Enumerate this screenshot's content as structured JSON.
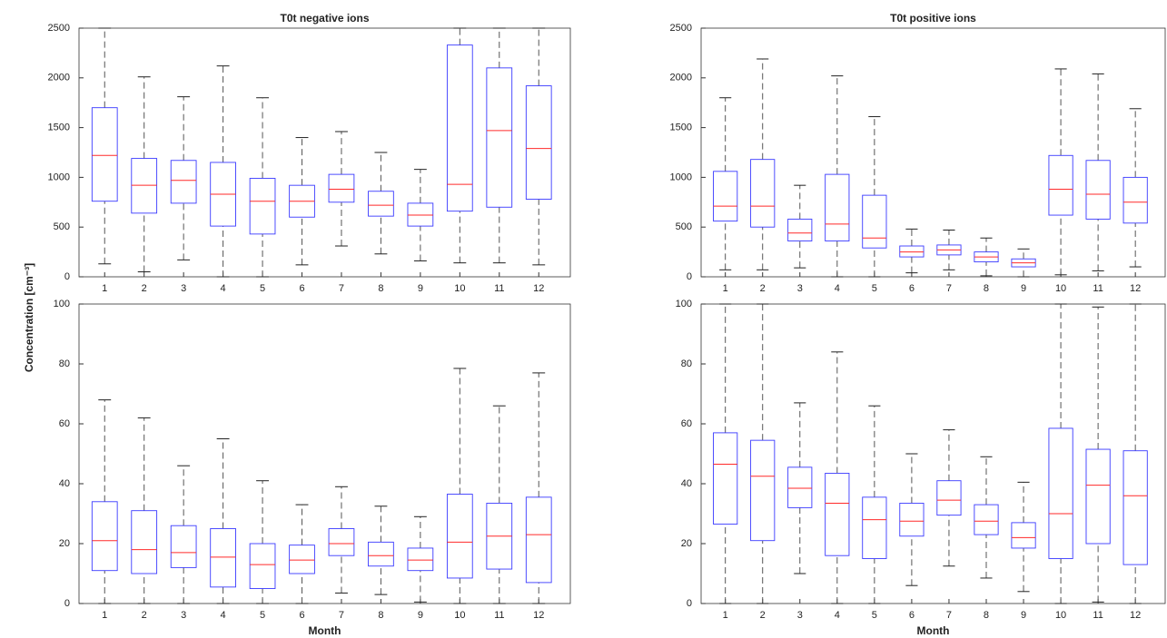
{
  "ylabel": "Concentration [cm⁻³]",
  "chart_data": [
    {
      "type": "box",
      "title": "T0t negative ions",
      "categories": [
        "1",
        "2",
        "3",
        "4",
        "5",
        "6",
        "7",
        "8",
        "9",
        "10",
        "11",
        "12"
      ],
      "whisker_low": [
        130,
        50,
        170,
        0,
        0,
        120,
        310,
        230,
        160,
        140,
        140,
        120
      ],
      "q1": [
        760,
        640,
        740,
        510,
        430,
        600,
        750,
        610,
        510,
        660,
        700,
        780
      ],
      "median": [
        1220,
        920,
        970,
        830,
        760,
        760,
        880,
        720,
        620,
        930,
        1470,
        1290
      ],
      "q3": [
        1700,
        1190,
        1170,
        1150,
        990,
        920,
        1030,
        860,
        740,
        2330,
        2100,
        1920
      ],
      "whisker_high": [
        2500,
        2010,
        1810,
        2120,
        1800,
        1400,
        1460,
        1250,
        1080,
        2500,
        2500,
        2500
      ],
      "ylim": [
        0,
        2500
      ],
      "yticks": [
        0,
        500,
        1000,
        1500,
        2000,
        2500
      ],
      "box_color": "#3a3aff",
      "median_color": "#ff2a2a",
      "whisker_color": "#555555"
    },
    {
      "type": "box",
      "title": "T0t positive ions",
      "categories": [
        "1",
        "2",
        "3",
        "4",
        "5",
        "6",
        "7",
        "8",
        "9",
        "10",
        "11",
        "12"
      ],
      "whisker_low": [
        70,
        70,
        90,
        0,
        0,
        40,
        70,
        10,
        0,
        20,
        60,
        100
      ],
      "q1": [
        560,
        500,
        360,
        360,
        290,
        200,
        220,
        150,
        100,
        620,
        580,
        540
      ],
      "median": [
        710,
        710,
        440,
        530,
        390,
        250,
        270,
        200,
        140,
        880,
        830,
        750
      ],
      "q3": [
        1060,
        1180,
        580,
        1030,
        820,
        310,
        320,
        250,
        180,
        1220,
        1170,
        1000
      ],
      "whisker_high": [
        1800,
        2190,
        920,
        2020,
        1610,
        480,
        470,
        390,
        280,
        2090,
        2040,
        1690
      ],
      "ylim": [
        0,
        2500
      ],
      "yticks": [
        0,
        500,
        1000,
        1500,
        2000,
        2500
      ],
      "box_color": "#3a3aff",
      "median_color": "#ff2a2a",
      "whisker_color": "#555555"
    },
    {
      "type": "box",
      "xlabel": "Month",
      "categories": [
        "1",
        "2",
        "3",
        "4",
        "5",
        "6",
        "7",
        "8",
        "9",
        "10",
        "11",
        "12"
      ],
      "whisker_low": [
        0,
        0,
        0,
        0,
        0,
        0,
        3.5,
        3,
        0.5,
        0,
        0,
        0
      ],
      "q1": [
        11,
        10,
        12,
        5.5,
        5,
        10,
        16,
        12.5,
        11,
        8.5,
        11.5,
        7
      ],
      "median": [
        21,
        18,
        17,
        15.5,
        13,
        14.5,
        20,
        16,
        14.5,
        20.5,
        22.5,
        23
      ],
      "q3": [
        34,
        31,
        26,
        25,
        20,
        19.5,
        25,
        20.5,
        18.5,
        36.5,
        33.5,
        35.5
      ],
      "whisker_high": [
        68,
        62,
        46,
        55,
        41,
        33,
        39,
        32.5,
        29,
        78.5,
        66,
        77
      ],
      "ylim": [
        0,
        100
      ],
      "yticks": [
        0,
        20,
        40,
        60,
        80,
        100
      ],
      "box_color": "#3a3aff",
      "median_color": "#ff2a2a",
      "whisker_color": "#555555"
    },
    {
      "type": "box",
      "xlabel": "Month",
      "categories": [
        "1",
        "2",
        "3",
        "4",
        "5",
        "6",
        "7",
        "8",
        "9",
        "10",
        "11",
        "12"
      ],
      "whisker_low": [
        0,
        0,
        10,
        0,
        0,
        6,
        12.5,
        8.5,
        4,
        0,
        0.5,
        0
      ],
      "q1": [
        26.5,
        21,
        32,
        16,
        15,
        22.5,
        29.5,
        23,
        18.5,
        15,
        20,
        13
      ],
      "median": [
        46.5,
        42.5,
        38.5,
        33.5,
        28,
        27.5,
        34.5,
        27.5,
        22,
        30,
        39.5,
        36
      ],
      "q3": [
        57,
        54.5,
        45.5,
        43.5,
        35.5,
        33.5,
        41,
        33,
        27,
        58.5,
        51.5,
        51
      ],
      "whisker_high": [
        100,
        100,
        67,
        84,
        66,
        50,
        58,
        49,
        40.5,
        100,
        99,
        100
      ],
      "ylim": [
        0,
        100
      ],
      "yticks": [
        0,
        20,
        40,
        60,
        80,
        100
      ],
      "box_color": "#3a3aff",
      "median_color": "#ff2a2a",
      "whisker_color": "#555555"
    }
  ]
}
